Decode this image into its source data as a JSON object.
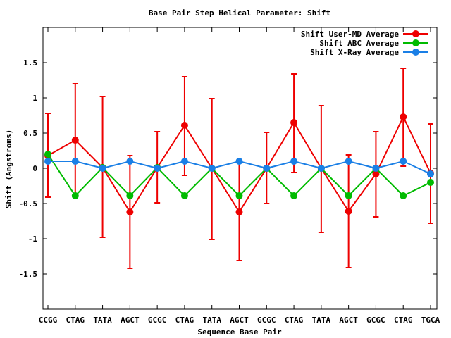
{
  "chart_data": {
    "type": "line",
    "title": "Base Pair Step Helical Parameter: Shift",
    "xlabel": "Sequence Base Pair",
    "ylabel": "Shift (Angstroms)",
    "ylim": [
      -2,
      2
    ],
    "yticks": [
      -1.5,
      -1,
      -0.5,
      0,
      0.5,
      1,
      1.5
    ],
    "ytick_labels": [
      "-1.5",
      "-1",
      "-0.5",
      "0",
      "0.5",
      "1",
      "1.5"
    ],
    "categories": [
      "CCGG",
      "CTAG",
      "TATA",
      "AGCT",
      "GCGC",
      "CTAG",
      "TATA",
      "AGCT",
      "GCGC",
      "CTAG",
      "TATA",
      "AGCT",
      "GCGC",
      "CTAG",
      "TGCA"
    ],
    "legend_position": "top-right",
    "grid": false,
    "series": [
      {
        "name": "Shift User-MD Average",
        "color": "#ee0000",
        "values": [
          0.18,
          0.4,
          0.01,
          -0.62,
          0.01,
          0.61,
          0.0,
          -0.62,
          0.0,
          0.65,
          0.0,
          -0.61,
          -0.08,
          0.73,
          -0.07
        ],
        "error_low": [
          -0.41,
          -0.4,
          -0.98,
          -1.42,
          -0.49,
          -0.1,
          -1.01,
          -1.31,
          -0.5,
          -0.06,
          -0.91,
          -1.41,
          -0.69,
          0.03,
          -0.78
        ],
        "error_high": [
          0.78,
          1.2,
          1.02,
          0.18,
          0.52,
          1.3,
          0.99,
          0.1,
          0.51,
          1.34,
          0.89,
          0.19,
          0.52,
          1.42,
          0.63
        ]
      },
      {
        "name": "Shift ABC Average",
        "color": "#00bb00",
        "values": [
          0.2,
          -0.39,
          0.01,
          -0.39,
          0.01,
          -0.39,
          0.0,
          -0.39,
          0.0,
          -0.39,
          0.0,
          -0.39,
          0.0,
          -0.39,
          -0.2
        ]
      },
      {
        "name": "Shift X-Ray Average",
        "color": "#1a7fe6",
        "values": [
          0.1,
          0.1,
          0.0,
          0.1,
          0.0,
          0.1,
          0.0,
          0.1,
          0.0,
          0.1,
          0.0,
          0.1,
          0.0,
          0.1,
          -0.08
        ]
      }
    ]
  }
}
